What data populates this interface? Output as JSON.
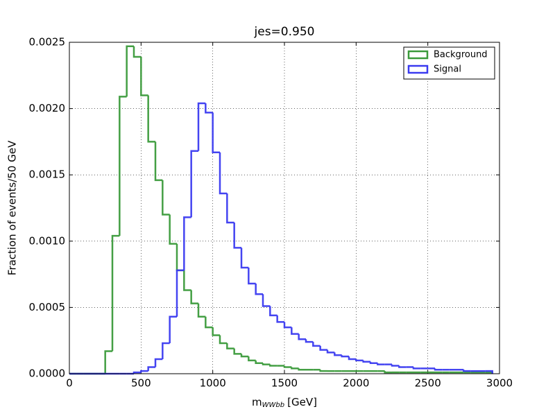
{
  "chart_data": {
    "type": "histogram",
    "title": "jes=0.950",
    "x_label": {
      "main": "m",
      "subscript": "WWbb",
      "unit": "[GeV]"
    },
    "y_label": "Fraction of events/50 GeV",
    "bins": [
      0,
      50,
      100,
      150,
      200,
      250,
      300,
      350,
      400,
      450,
      500,
      550,
      600,
      650,
      700,
      750,
      800,
      850,
      900,
      950,
      1000,
      1050,
      1100,
      1150,
      1200,
      1250,
      1300,
      1350,
      1400,
      1450,
      1500,
      1550,
      1600,
      1650,
      1700,
      1750,
      1800,
      1850,
      1900,
      1950,
      2000,
      2050,
      2100,
      2150,
      2200,
      2250,
      2300,
      2350,
      2400,
      2450,
      2500,
      2550,
      2600,
      2650,
      2700,
      2750,
      2800,
      2850,
      2900,
      2950
    ],
    "series": [
      {
        "name": "Background",
        "color": "#3a9a3a",
        "values": [
          0,
          0,
          0,
          0,
          0,
          0.00017,
          0.00104,
          0.00209,
          0.00247,
          0.00239,
          0.0021,
          0.00175,
          0.00146,
          0.0012,
          0.00098,
          0.00078,
          0.00063,
          0.00053,
          0.00043,
          0.00035,
          0.00029,
          0.00023,
          0.00019,
          0.00015,
          0.00013,
          0.0001,
          8e-05,
          7e-05,
          6e-05,
          6e-05,
          5e-05,
          4e-05,
          3e-05,
          3e-05,
          3e-05,
          2e-05,
          2e-05,
          2e-05,
          2e-05,
          2e-05,
          2e-05,
          2e-05,
          2e-05,
          2e-05,
          1e-05,
          1e-05,
          1e-05,
          1e-05,
          1e-05,
          1e-05,
          1e-05,
          1e-05,
          1e-05,
          1e-05,
          1e-05,
          1e-05,
          1e-05,
          1e-05,
          1e-05
        ]
      },
      {
        "name": "Signal",
        "color": "#3a3af0",
        "values": [
          0,
          0,
          0,
          0,
          0,
          0,
          0,
          0,
          0,
          1e-05,
          2e-05,
          5e-05,
          0.00011,
          0.00023,
          0.00043,
          0.00078,
          0.00118,
          0.00168,
          0.00204,
          0.00197,
          0.00167,
          0.00136,
          0.00114,
          0.00095,
          0.0008,
          0.00068,
          0.0006,
          0.00051,
          0.00044,
          0.00039,
          0.00035,
          0.0003,
          0.00026,
          0.00024,
          0.00021,
          0.00018,
          0.00016,
          0.00014,
          0.00013,
          0.00011,
          0.0001,
          9e-05,
          8e-05,
          7e-05,
          7e-05,
          6e-05,
          5e-05,
          5e-05,
          4e-05,
          4e-05,
          4e-05,
          3e-05,
          3e-05,
          3e-05,
          3e-05,
          2e-05,
          2e-05,
          2e-05,
          2e-05
        ]
      }
    ],
    "xlim": [
      0,
      3000
    ],
    "xticks": [
      0,
      500,
      1000,
      1500,
      2000,
      2500,
      3000
    ],
    "ylim": [
      0,
      0.0025
    ],
    "yticks": [
      {
        "value": 0,
        "label": "0.0000"
      },
      {
        "value": 0.0005,
        "label": "0.0005"
      },
      {
        "value": 0.001,
        "label": "0.0010"
      },
      {
        "value": 0.0015,
        "label": "0.0015"
      },
      {
        "value": 0.002,
        "label": "0.0020"
      },
      {
        "value": 0.0025,
        "label": "0.0025"
      }
    ],
    "grid": true,
    "legend": "upper right"
  }
}
